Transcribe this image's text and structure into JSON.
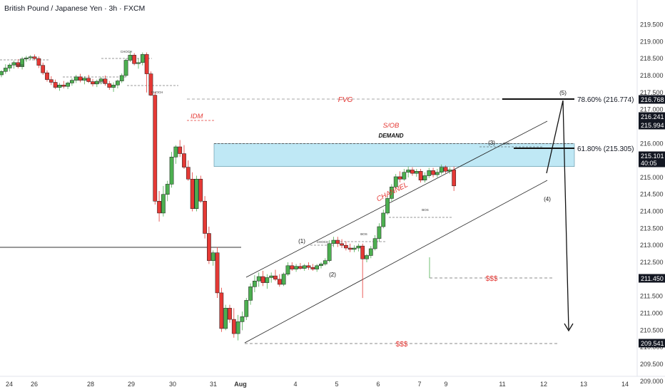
{
  "header": {
    "title": "British Pound / Japanese Yen · 3h · FXCM"
  },
  "colors": {
    "bull": "#4caf50",
    "bear": "#e53935",
    "annotation_red": "#e53935",
    "zone_fill": "#bfe8f5",
    "badge": "#131722",
    "text": "#131722"
  },
  "chart_data": {
    "type": "candlestick",
    "price_axis": {
      "min": 209.0,
      "max": 219.5,
      "ticks": [
        "219.500",
        "219.000",
        "218.500",
        "218.000",
        "217.500",
        "217.000",
        "216.500",
        "216.000",
        "215.500",
        "215.000",
        "214.500",
        "214.000",
        "213.500",
        "213.000",
        "212.500",
        "212.000",
        "211.500",
        "211.000",
        "210.500",
        "210.000",
        "209.500",
        "209.000"
      ]
    },
    "time_axis": {
      "labels": [
        "24",
        "26",
        "28",
        "29",
        "30",
        "31",
        "Aug",
        "4",
        "5",
        "6",
        "7",
        "9",
        "11",
        "12",
        "13",
        "14"
      ]
    },
    "price_badges": [
      {
        "value": 216.768,
        "label": "216.768",
        "lines": []
      },
      {
        "value": 216.241,
        "label": "216.241",
        "lines": []
      },
      {
        "value": 215.994,
        "label": "215.994",
        "lines": []
      },
      {
        "value": 215.101,
        "label": "215.101",
        "lines": [
          "40:05"
        ]
      },
      {
        "value": 211.45,
        "label": "211.450",
        "lines": []
      },
      {
        "value": 209.541,
        "label": "209.541",
        "lines": []
      }
    ],
    "fib_levels": [
      {
        "label": "78.60% (216.774)",
        "value": 216.774
      },
      {
        "label": "61.80% (215.305)",
        "value": 215.305
      }
    ],
    "zones": [
      {
        "label": "DEMAND",
        "top": 215.994,
        "bottom": 215.32
      }
    ],
    "annotations": {
      "fvg": "FVG",
      "idm": "IDM",
      "sob": "S/OB",
      "channel": "CHANNEL",
      "liq1": "$$$",
      "liq2": "$$$",
      "bos": "BOS",
      "choch": "CHOCH",
      "waves": [
        "(1)",
        "(2)",
        "(3)",
        "(4)",
        "(5)"
      ]
    },
    "candles": [
      [
        218.02,
        218.16,
        217.95,
        218.12
      ],
      [
        218.12,
        218.33,
        218.05,
        218.22
      ],
      [
        218.22,
        218.36,
        218.12,
        218.31
      ],
      [
        218.31,
        218.44,
        218.2,
        218.38
      ],
      [
        218.38,
        218.48,
        218.21,
        218.26
      ],
      [
        218.26,
        218.55,
        218.18,
        218.49
      ],
      [
        218.49,
        218.58,
        218.4,
        218.52
      ],
      [
        218.52,
        218.6,
        218.46,
        218.55
      ],
      [
        218.55,
        218.62,
        218.45,
        218.5
      ],
      [
        218.5,
        218.56,
        218.22,
        218.3
      ],
      [
        218.3,
        218.38,
        218.02,
        218.08
      ],
      [
        218.08,
        218.15,
        217.82,
        217.88
      ],
      [
        217.88,
        217.98,
        217.72,
        217.8
      ],
      [
        217.8,
        217.88,
        217.6,
        217.65
      ],
      [
        217.65,
        217.78,
        217.55,
        217.72
      ],
      [
        217.72,
        217.84,
        217.62,
        217.68
      ],
      [
        217.68,
        217.82,
        217.6,
        217.78
      ],
      [
        217.78,
        217.92,
        217.7,
        217.86
      ],
      [
        217.86,
        218.02,
        217.78,
        217.96
      ],
      [
        217.96,
        218.05,
        217.8,
        217.86
      ],
      [
        217.86,
        217.98,
        217.74,
        217.92
      ],
      [
        217.92,
        218.02,
        217.78,
        217.82
      ],
      [
        217.82,
        217.9,
        217.68,
        217.75
      ],
      [
        217.75,
        217.88,
        217.66,
        217.83
      ],
      [
        217.83,
        217.96,
        217.74,
        217.9
      ],
      [
        217.9,
        218.0,
        217.7,
        217.76
      ],
      [
        217.76,
        217.84,
        217.58,
        217.65
      ],
      [
        217.65,
        217.8,
        217.52,
        217.72
      ],
      [
        217.72,
        217.88,
        217.62,
        217.84
      ],
      [
        217.84,
        218.06,
        217.78,
        218.0
      ],
      [
        218.0,
        218.5,
        217.95,
        218.45
      ],
      [
        218.45,
        218.72,
        218.4,
        218.6
      ],
      [
        218.6,
        218.66,
        218.3,
        218.35
      ],
      [
        218.35,
        218.5,
        218.2,
        218.38
      ],
      [
        218.38,
        218.68,
        218.3,
        218.62
      ],
      [
        218.62,
        218.68,
        217.5,
        218.05
      ],
      [
        218.05,
        218.12,
        217.4,
        217.42
      ],
      [
        217.42,
        217.5,
        214.2,
        214.3
      ],
      [
        214.3,
        214.6,
        213.7,
        213.95
      ],
      [
        213.95,
        214.75,
        213.85,
        214.5
      ],
      [
        214.5,
        214.9,
        214.3,
        214.8
      ],
      [
        214.8,
        215.75,
        214.7,
        215.6
      ],
      [
        215.6,
        215.95,
        215.4,
        215.9
      ],
      [
        215.9,
        216.1,
        215.6,
        215.7
      ],
      [
        215.7,
        215.95,
        215.25,
        215.3
      ],
      [
        215.3,
        215.5,
        214.9,
        214.95
      ],
      [
        214.95,
        215.15,
        214.0,
        214.08
      ],
      [
        214.08,
        215.05,
        214.0,
        214.95
      ],
      [
        214.95,
        215.05,
        214.25,
        214.3
      ],
      [
        214.3,
        214.45,
        213.2,
        213.35
      ],
      [
        213.35,
        213.55,
        212.45,
        212.55
      ],
      [
        212.55,
        212.85,
        212.4,
        212.78
      ],
      [
        212.78,
        212.95,
        211.45,
        211.6
      ],
      [
        211.6,
        211.75,
        210.45,
        210.55
      ],
      [
        210.55,
        211.25,
        210.5,
        211.15
      ],
      [
        211.15,
        211.25,
        210.72,
        210.82
      ],
      [
        210.82,
        211.15,
        210.28,
        210.4
      ],
      [
        210.4,
        210.95,
        210.2,
        210.75
      ],
      [
        210.75,
        211.05,
        210.5,
        210.9
      ],
      [
        210.9,
        211.45,
        210.8,
        211.38
      ],
      [
        211.38,
        211.88,
        211.25,
        211.78
      ],
      [
        211.78,
        212.12,
        211.62,
        211.95
      ],
      [
        211.95,
        212.2,
        211.78,
        212.08
      ],
      [
        212.08,
        212.25,
        211.8,
        211.9
      ],
      [
        211.9,
        212.15,
        211.72,
        212.05
      ],
      [
        212.05,
        212.2,
        211.9,
        212.1
      ],
      [
        212.1,
        212.28,
        211.95,
        212.0
      ],
      [
        212.0,
        212.15,
        211.78,
        211.85
      ],
      [
        211.85,
        212.2,
        211.8,
        212.15
      ],
      [
        212.15,
        212.5,
        212.1,
        212.4
      ],
      [
        212.4,
        212.5,
        212.25,
        212.3
      ],
      [
        212.3,
        212.45,
        212.22,
        212.38
      ],
      [
        212.38,
        212.48,
        212.28,
        212.32
      ],
      [
        212.32,
        212.45,
        212.25,
        212.4
      ],
      [
        212.4,
        212.5,
        212.28,
        212.35
      ],
      [
        212.35,
        212.45,
        212.25,
        212.3
      ],
      [
        212.3,
        212.45,
        212.22,
        212.4
      ],
      [
        212.4,
        212.5,
        212.32,
        212.45
      ],
      [
        212.45,
        212.62,
        212.4,
        212.55
      ],
      [
        212.55,
        213.15,
        212.5,
        213.05
      ],
      [
        213.05,
        213.25,
        212.95,
        213.15
      ],
      [
        213.15,
        213.25,
        212.95,
        213.05
      ],
      [
        213.05,
        213.18,
        212.92,
        213.0
      ],
      [
        213.0,
        213.12,
        212.85,
        212.92
      ],
      [
        212.92,
        213.05,
        212.8,
        212.88
      ],
      [
        212.88,
        213.0,
        212.8,
        212.92
      ],
      [
        212.92,
        213.05,
        212.82,
        212.98
      ],
      [
        212.98,
        213.05,
        211.45,
        212.6
      ],
      [
        212.6,
        212.75,
        212.5,
        212.7
      ],
      [
        212.7,
        212.98,
        212.62,
        212.9
      ],
      [
        212.9,
        213.3,
        212.85,
        213.2
      ],
      [
        213.2,
        213.65,
        213.1,
        213.55
      ],
      [
        213.55,
        214.05,
        213.5,
        213.95
      ],
      [
        213.95,
        214.45,
        213.9,
        214.38
      ],
      [
        214.38,
        214.8,
        214.3,
        214.72
      ],
      [
        214.72,
        215.1,
        214.68,
        215.02
      ],
      [
        215.02,
        215.18,
        214.85,
        214.95
      ],
      [
        214.95,
        215.25,
        214.9,
        215.15
      ],
      [
        215.15,
        215.32,
        215.0,
        215.22
      ],
      [
        215.22,
        215.3,
        215.05,
        215.12
      ],
      [
        215.12,
        215.25,
        215.02,
        215.18
      ],
      [
        215.18,
        215.25,
        214.85,
        214.92
      ],
      [
        214.92,
        215.15,
        214.85,
        215.05
      ],
      [
        215.05,
        215.28,
        214.98,
        215.2
      ],
      [
        215.2,
        215.28,
        215.0,
        215.08
      ],
      [
        215.08,
        215.25,
        215.0,
        215.15
      ],
      [
        215.15,
        215.38,
        215.08,
        215.3
      ],
      [
        215.3,
        215.35,
        215.12,
        215.18
      ],
      [
        215.18,
        215.3,
        215.1,
        215.22
      ],
      [
        215.22,
        215.32,
        214.6,
        214.75
      ]
    ]
  }
}
